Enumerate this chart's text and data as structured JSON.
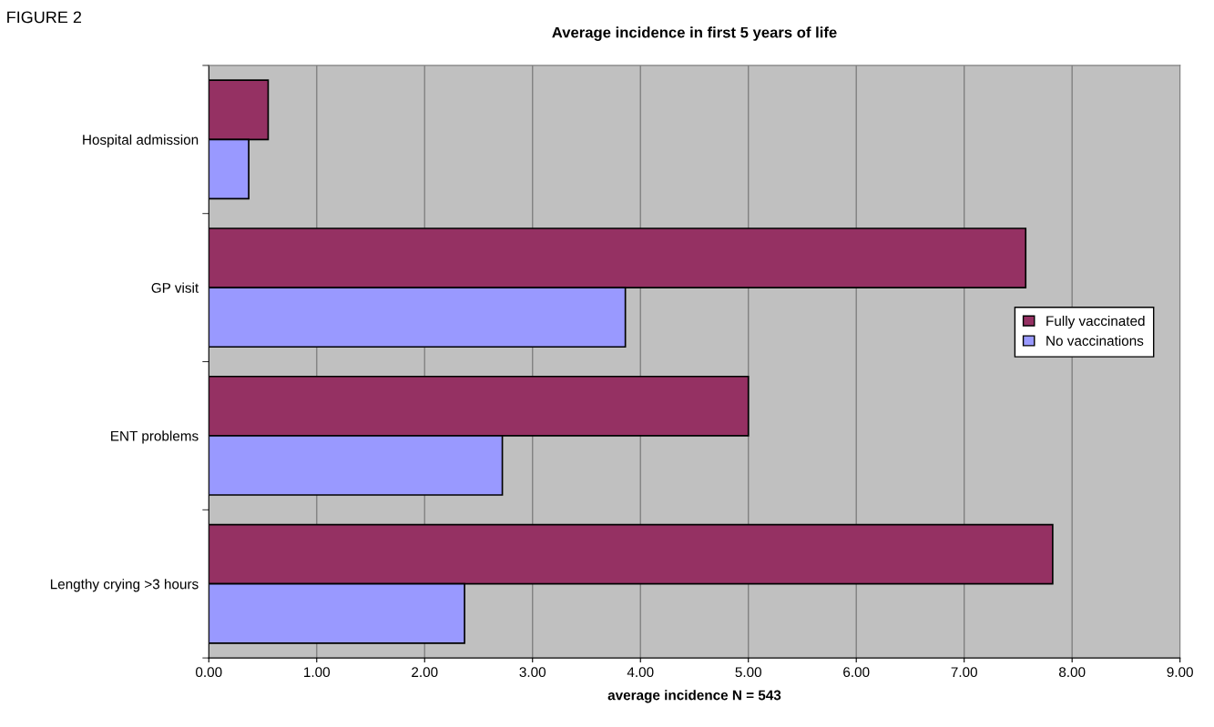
{
  "chart_data": {
    "type": "bar",
    "orientation": "horizontal",
    "title": "Average incidence in first 5 years of life",
    "xlabel": "average incidence N = 543",
    "annotations": [
      "FIGURE 2"
    ],
    "categories": [
      "Hospital admission",
      "GP visit",
      "ENT problems",
      "Lengthy crying >3 hours"
    ],
    "series": [
      {
        "name": "Fully vaccinated",
        "color": "#953163",
        "values": [
          0.55,
          7.57,
          5.0,
          7.82
        ]
      },
      {
        "name": "No vaccinations",
        "color": "#9999ff",
        "values": [
          0.37,
          3.86,
          2.72,
          2.37
        ]
      }
    ],
    "xlim": [
      0,
      9
    ],
    "xticks": [
      {
        "value": 0,
        "label": "0.00"
      },
      {
        "value": 1,
        "label": "1.00"
      },
      {
        "value": 2,
        "label": "2.00"
      },
      {
        "value": 3,
        "label": "3.00"
      },
      {
        "value": 4,
        "label": "4.00"
      },
      {
        "value": 5,
        "label": "5.00"
      },
      {
        "value": 6,
        "label": "6.00"
      },
      {
        "value": 7,
        "label": "7.00"
      },
      {
        "value": 8,
        "label": "8.00"
      },
      {
        "value": 9,
        "label": "9.00"
      }
    ],
    "grid": "x",
    "legend": "center right"
  }
}
